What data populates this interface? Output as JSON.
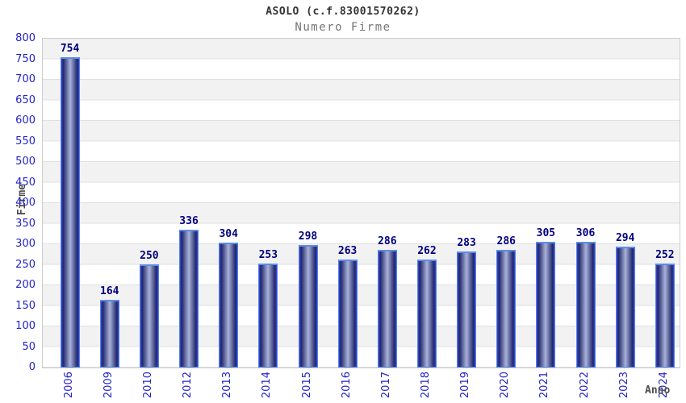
{
  "chart_data": {
    "type": "bar",
    "title": "ASOLO (c.f.83001570262)",
    "subtitle": "Numero Firme",
    "ylabel": "Firme",
    "xlabel": "Anno",
    "categories": [
      "2006",
      "2009",
      "2010",
      "2012",
      "2013",
      "2014",
      "2015",
      "2016",
      "2017",
      "2018",
      "2019",
      "2020",
      "2021",
      "2022",
      "2023",
      "2024"
    ],
    "values": [
      754,
      164,
      250,
      336,
      304,
      253,
      298,
      263,
      286,
      262,
      283,
      286,
      305,
      306,
      294,
      252
    ],
    "ylim": [
      0,
      800
    ],
    "ytick_step": 50,
    "yticks": [
      0,
      50,
      100,
      150,
      200,
      250,
      300,
      350,
      400,
      450,
      500,
      550,
      600,
      650,
      700,
      750,
      800
    ],
    "legend": "none",
    "grid": "horizontal gridlines every 50 with alternating white/grey bands",
    "value_labels_shown": true,
    "colors": {
      "tick_label": "#2222cc",
      "value_label": "#000080",
      "title": "#333333",
      "subtitle": "#757575",
      "axis_title": "#4d4d4d",
      "bar_edge_blue": "#3a49d8",
      "bar_dark": "#20266b",
      "bar_center_light": "#a9b2d8",
      "bar_border": "#4f83e6",
      "band_grey": "#f2f2f2",
      "grid_line": "#e0e0e0",
      "plot_border": "#cccccc",
      "background": "#ffffff"
    }
  }
}
